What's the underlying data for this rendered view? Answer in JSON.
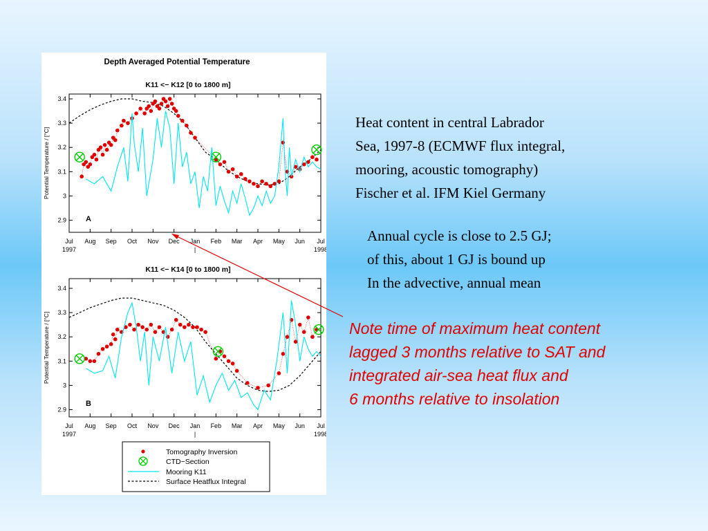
{
  "figure": {
    "title": "Depth Averaged Potential Temperature",
    "x_tick_labels": [
      "Jul",
      "Aug",
      "Sep",
      "Oct",
      "Nov",
      "Dec",
      "Jan",
      "Feb",
      "Mar",
      "Apr",
      "May",
      "Jun",
      "Jul"
    ],
    "year_labels": {
      "start": "1997",
      "end": "1998",
      "divider": "|"
    },
    "legend": {
      "tomography": "Tomography Inversion",
      "ctd": "CTD−Section",
      "mooring": "Mooring K11",
      "heatflux": "Surface Heatflux Integral"
    }
  },
  "colors": {
    "tomography": "#e00000",
    "ctd": "#00cc00",
    "mooring": "#00e5ee",
    "heatflux": "#000000",
    "note_text": "#e00000",
    "pointer": "#e00000"
  },
  "chart_data": [
    {
      "type": "line",
      "subtitle": "K11 <− K12   [0 to 1800 m]",
      "panel_label": "A",
      "ylabel": "Potential Temperature / [°C]",
      "ylim": [
        2.85,
        3.42
      ],
      "yticks": [
        2.9,
        3.0,
        3.1,
        3.2,
        3.3,
        3.4
      ],
      "ytick_labels": [
        "2.9",
        "3",
        "3.1",
        "3.2",
        "3.3",
        "3.4"
      ],
      "xlim": [
        0,
        12
      ],
      "series": [
        {
          "name": "Surface Heatflux Integral",
          "style": "dashed",
          "x": [
            0,
            0.5,
            1,
            1.5,
            2,
            2.5,
            3,
            3.5,
            4,
            4.5,
            5,
            5.5,
            6,
            6.5,
            7,
            7.5,
            8,
            8.5,
            9,
            9.5,
            10,
            10.5,
            11,
            11.5,
            12
          ],
          "y": [
            3.3,
            3.33,
            3.355,
            3.375,
            3.39,
            3.4,
            3.4,
            3.39,
            3.385,
            3.37,
            3.34,
            3.3,
            3.24,
            3.18,
            3.15,
            3.11,
            3.08,
            3.06,
            3.05,
            3.045,
            3.05,
            3.08,
            3.12,
            3.15,
            3.19
          ]
        },
        {
          "name": "Tomography Inversion",
          "style": "dots",
          "x": [
            0.6,
            0.7,
            0.8,
            0.9,
            1.0,
            1.1,
            1.2,
            1.3,
            1.4,
            1.5,
            1.6,
            1.7,
            1.8,
            1.9,
            2.0,
            2.1,
            2.2,
            2.3,
            2.5,
            2.6,
            2.8,
            3.0,
            3.2,
            3.4,
            3.6,
            3.7,
            3.8,
            3.9,
            4.0,
            4.1,
            4.2,
            4.3,
            4.4,
            4.5,
            4.6,
            4.7,
            4.8,
            4.9,
            5.0,
            5.1,
            5.2,
            5.4,
            5.6,
            5.8,
            6.0,
            7.0,
            7.2,
            7.4,
            7.6,
            7.8,
            8.0,
            8.2,
            8.4,
            8.6,
            8.8,
            9.0,
            9.2,
            9.4,
            9.6,
            9.8,
            10.0,
            10.2,
            10.4,
            10.6,
            10.8,
            11.0,
            11.2,
            11.4,
            11.6,
            11.8
          ],
          "y": [
            3.08,
            3.13,
            3.14,
            3.12,
            3.13,
            3.16,
            3.17,
            3.15,
            3.19,
            3.2,
            3.17,
            3.21,
            3.19,
            3.22,
            3.21,
            3.24,
            3.23,
            3.27,
            3.29,
            3.31,
            3.3,
            3.32,
            3.34,
            3.36,
            3.34,
            3.36,
            3.37,
            3.35,
            3.38,
            3.39,
            3.37,
            3.36,
            3.38,
            3.4,
            3.39,
            3.37,
            3.4,
            3.38,
            3.36,
            3.35,
            3.33,
            3.31,
            3.29,
            3.26,
            3.24,
            3.15,
            3.13,
            3.14,
            3.1,
            3.11,
            3.08,
            3.09,
            3.07,
            3.06,
            3.05,
            3.04,
            3.06,
            3.05,
            3.04,
            3.05,
            3.06,
            3.22,
            3.1,
            3.08,
            3.12,
            3.11,
            3.13,
            3.14,
            3.16,
            3.15
          ]
        },
        {
          "name": "CTD-Section",
          "style": "marker",
          "x": [
            0.5,
            7.0,
            11.8
          ],
          "y": [
            3.16,
            3.16,
            3.19
          ]
        },
        {
          "name": "Mooring K11",
          "style": "solid",
          "x": [
            0.8,
            1.2,
            1.6,
            2.0,
            2.3,
            2.6,
            2.8,
            3.0,
            3.1,
            3.3,
            3.5,
            3.7,
            4.0,
            4.2,
            4.4,
            4.6,
            4.8,
            5.0,
            5.2,
            5.4,
            5.6,
            5.8,
            6.0,
            6.2,
            6.4,
            6.6,
            6.8,
            7.0,
            7.2,
            7.4,
            7.6,
            7.8,
            8.0,
            8.2,
            8.4,
            8.6,
            8.8,
            9.0,
            9.2,
            9.4,
            9.6,
            9.8,
            10.0,
            10.2,
            10.3,
            10.4,
            10.5,
            10.6,
            10.8,
            11.0,
            11.2,
            11.4,
            11.6,
            11.8,
            12.0
          ],
          "y": [
            3.07,
            3.05,
            3.08,
            3.02,
            3.12,
            3.2,
            3.06,
            3.34,
            3.22,
            3.1,
            3.28,
            3.0,
            3.15,
            3.32,
            3.2,
            3.35,
            3.28,
            3.05,
            3.3,
            3.12,
            3.18,
            3.05,
            3.1,
            2.95,
            3.08,
            3.02,
            3.2,
            2.96,
            3.04,
            2.98,
            2.93,
            3.02,
            2.97,
            3.05,
            2.99,
            2.92,
            2.95,
            3.0,
            2.96,
            3.02,
            2.97,
            3.0,
            3.12,
            3.32,
            3.1,
            3.0,
            3.2,
            3.08,
            3.15,
            3.1,
            3.16,
            3.12,
            3.14,
            3.12,
            3.11
          ]
        }
      ]
    },
    {
      "type": "line",
      "subtitle": "K11 <− K14   [0 to 1800 m]",
      "panel_label": "B",
      "ylabel": "Potential Temperature / [°C]",
      "ylim": [
        2.87,
        3.44
      ],
      "yticks": [
        2.9,
        3.0,
        3.1,
        3.2,
        3.3,
        3.4
      ],
      "ytick_labels": [
        "2.9",
        "3",
        "3.1",
        "3.2",
        "3.3",
        "3.4"
      ],
      "xlim": [
        0,
        12
      ],
      "series": [
        {
          "name": "Surface Heatflux Integral",
          "style": "dashed",
          "x": [
            0,
            0.5,
            1,
            1.5,
            2,
            2.5,
            3,
            3.5,
            4,
            4.5,
            5,
            5.5,
            6,
            6.5,
            7,
            7.5,
            8,
            8.5,
            9,
            9.5,
            10,
            10.5,
            11,
            11.5,
            12
          ],
          "y": [
            3.28,
            3.3,
            3.32,
            3.335,
            3.35,
            3.36,
            3.36,
            3.35,
            3.34,
            3.33,
            3.31,
            3.28,
            3.24,
            3.18,
            3.13,
            3.08,
            3.03,
            3.0,
            2.98,
            2.975,
            2.98,
            3.0,
            3.04,
            3.09,
            3.14
          ]
        },
        {
          "name": "Tomography Inversion",
          "style": "dots",
          "x": [
            0.8,
            1.0,
            1.2,
            1.4,
            1.6,
            1.8,
            2.0,
            2.1,
            2.2,
            2.3,
            2.5,
            2.7,
            2.9,
            3.1,
            3.3,
            3.5,
            3.7,
            3.9,
            4.1,
            4.3,
            4.5,
            4.7,
            4.9,
            5.1,
            5.3,
            5.5,
            5.7,
            5.9,
            6.1,
            6.3,
            6.5,
            7.0,
            7.2,
            7.4,
            7.6,
            7.8,
            8.0,
            8.5,
            9.0,
            9.5,
            10.0,
            10.2,
            10.4,
            10.6,
            10.8,
            11.0,
            11.2,
            11.4,
            11.6,
            11.8
          ],
          "y": [
            3.11,
            3.1,
            3.1,
            3.13,
            3.15,
            3.16,
            3.17,
            3.21,
            3.19,
            3.23,
            3.22,
            3.24,
            3.25,
            3.23,
            3.25,
            3.24,
            3.23,
            3.25,
            3.22,
            3.24,
            3.22,
            3.2,
            3.23,
            3.27,
            3.25,
            3.24,
            3.25,
            3.24,
            3.24,
            3.23,
            3.22,
            3.11,
            3.14,
            3.12,
            3.1,
            3.09,
            3.06,
            3.01,
            2.99,
            3.0,
            3.05,
            3.13,
            3.2,
            3.27,
            3.18,
            3.25,
            3.22,
            3.28,
            3.2,
            3.23
          ]
        },
        {
          "name": "CTD-Section",
          "style": "marker",
          "x": [
            0.5,
            7.1,
            11.9
          ],
          "y": [
            3.11,
            3.14,
            3.23
          ]
        },
        {
          "name": "Mooring K11",
          "style": "solid",
          "x": [
            0.8,
            1.2,
            1.6,
            1.9,
            2.2,
            2.5,
            2.8,
            3.0,
            3.2,
            3.4,
            3.6,
            3.8,
            4.0,
            4.3,
            4.6,
            4.9,
            5.2,
            5.5,
            5.8,
            6.1,
            6.4,
            6.7,
            7.0,
            7.3,
            7.6,
            7.9,
            8.2,
            8.5,
            8.8,
            9.0,
            9.3,
            9.6,
            9.9,
            10.2,
            10.4,
            10.6,
            10.8,
            11.0,
            11.2,
            11.4,
            11.6,
            11.8,
            12.0
          ],
          "y": [
            3.07,
            3.05,
            3.06,
            3.12,
            3.03,
            3.2,
            3.3,
            3.34,
            3.24,
            3.1,
            3.22,
            3.0,
            3.2,
            3.1,
            3.24,
            3.05,
            3.22,
            3.1,
            3.18,
            2.96,
            3.04,
            2.93,
            3.0,
            3.05,
            2.98,
            3.02,
            2.95,
            2.97,
            2.92,
            2.9,
            2.98,
            2.94,
            3.1,
            3.3,
            3.05,
            3.35,
            3.25,
            3.1,
            3.2,
            3.15,
            3.12,
            3.14,
            3.12
          ]
        }
      ]
    }
  ],
  "description": {
    "lines": [
      "Heat content in central Labrador",
      "Sea, 1997-8 (ECMWF flux integral,",
      "mooring, acoustic tomography)",
      "Fischer et al. IFM Kiel Germany"
    ]
  },
  "annual": {
    "lines": [
      "Annual cycle is close to 2.5 GJ;",
      "of this, about 1 GJ is bound up",
      "In the advective, annual mean"
    ]
  },
  "note": {
    "lines": [
      "Note time of maximum heat content",
      "lagged 3 months relative to SAT and",
      "integrated air-sea heat flux and",
      "6 months relative to insolation"
    ]
  }
}
